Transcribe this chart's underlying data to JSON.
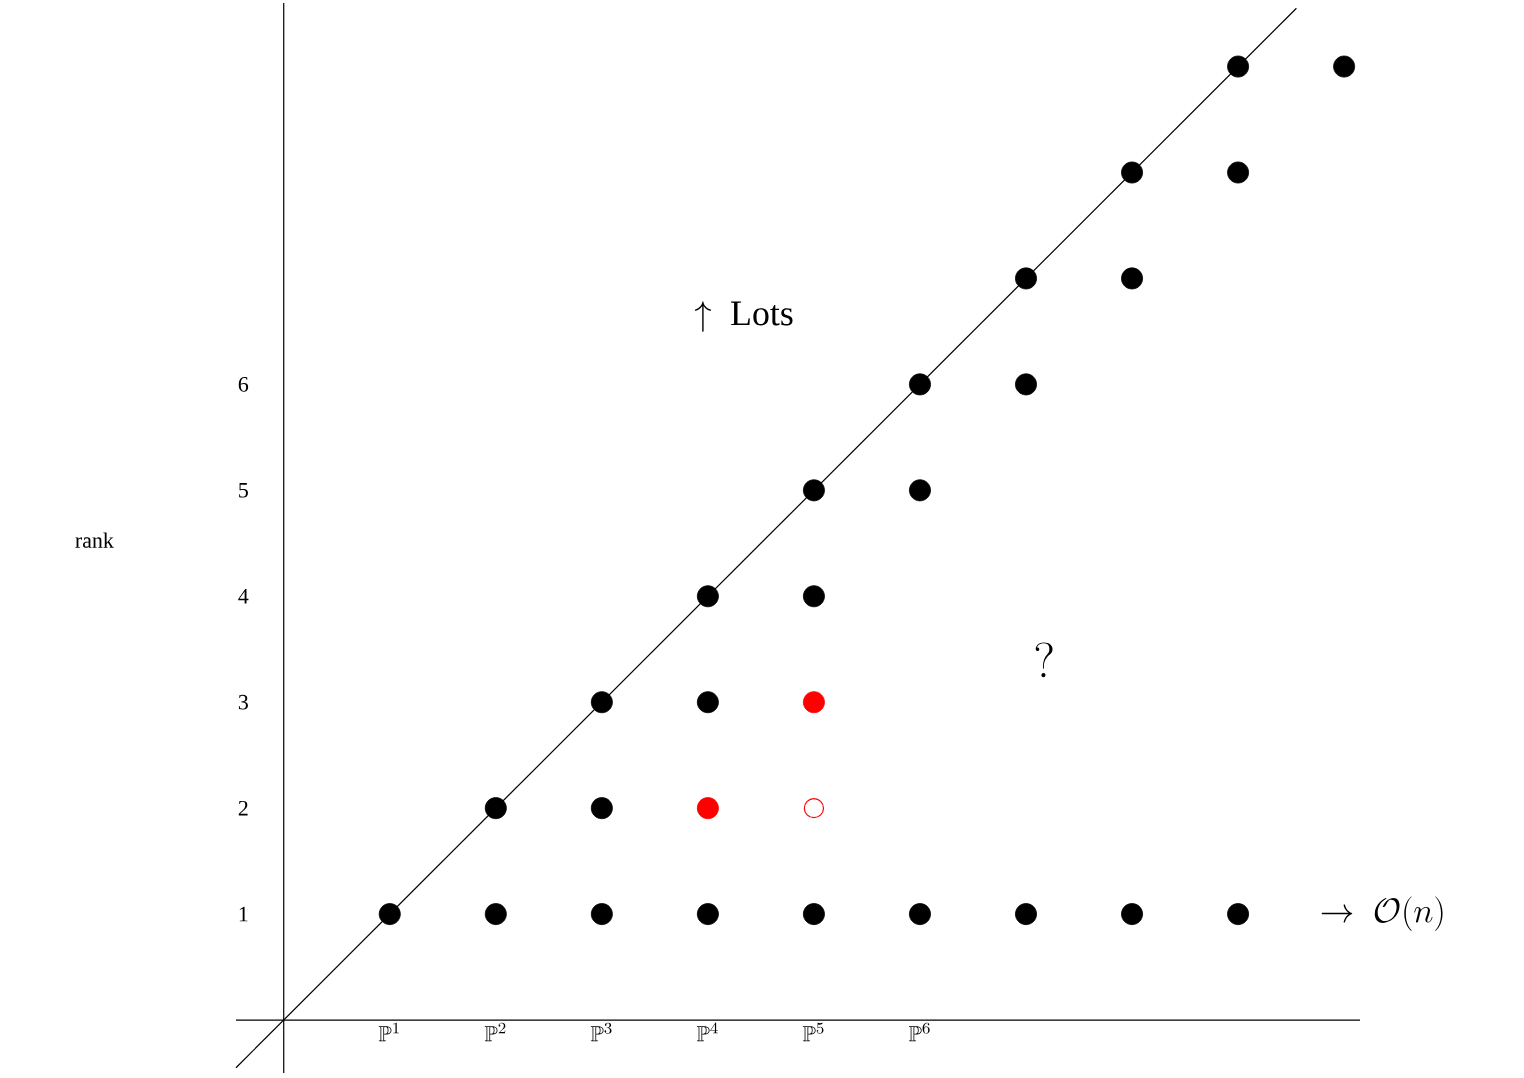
{
  "chart_data": {
    "type": "scatter",
    "xlim": [
      -0.45,
      10.15
    ],
    "ylim": [
      -0.5,
      9.6
    ],
    "xticks": [
      {
        "value": 1,
        "label": "\\mathbb{P}^{1}"
      },
      {
        "value": 2,
        "label": "\\mathbb{P}^{2}"
      },
      {
        "value": 3,
        "label": "\\mathbb{P}^{3}"
      },
      {
        "value": 4,
        "label": "\\mathbb{P}^{4}"
      },
      {
        "value": 5,
        "label": "\\mathbb{P}^{5}"
      },
      {
        "value": 6,
        "label": "\\mathbb{P}^{6}"
      }
    ],
    "yticks": [
      1,
      2,
      3,
      4,
      5,
      6
    ],
    "grid": false,
    "series": [
      {
        "type": "line",
        "color": "#000000",
        "marker": "none",
        "line_style": "solid",
        "x": [
          -0.45,
          9.55
        ],
        "values": [
          -0.45,
          9.55
        ]
      },
      {
        "color": "#000000",
        "marker": "circle",
        "x": [
          1,
          2,
          3,
          4,
          5,
          6,
          7,
          8,
          9,
          2,
          3,
          3,
          4,
          4,
          5,
          5,
          6,
          6,
          7,
          7,
          8,
          8,
          9,
          9,
          10
        ],
        "values": [
          1,
          1,
          1,
          1,
          1,
          1,
          1,
          1,
          1,
          2,
          2,
          3,
          3,
          4,
          4,
          5,
          5,
          6,
          6,
          7,
          7,
          8,
          8,
          9,
          9
        ]
      },
      {
        "color": "#ff0000",
        "marker": "circle",
        "x": [
          4,
          5
        ],
        "values": [
          2,
          3
        ]
      },
      {
        "color": "#ff0000",
        "marker": "circle-open",
        "x": [
          5
        ],
        "values": [
          2
        ]
      }
    ],
    "annotations": [
      "\\mathrm{rank}",
      "\\uparrow\\ \\mathrm{Lots}",
      "?",
      "\\rightarrow\\ \\mathcal{O}(n)"
    ]
  }
}
